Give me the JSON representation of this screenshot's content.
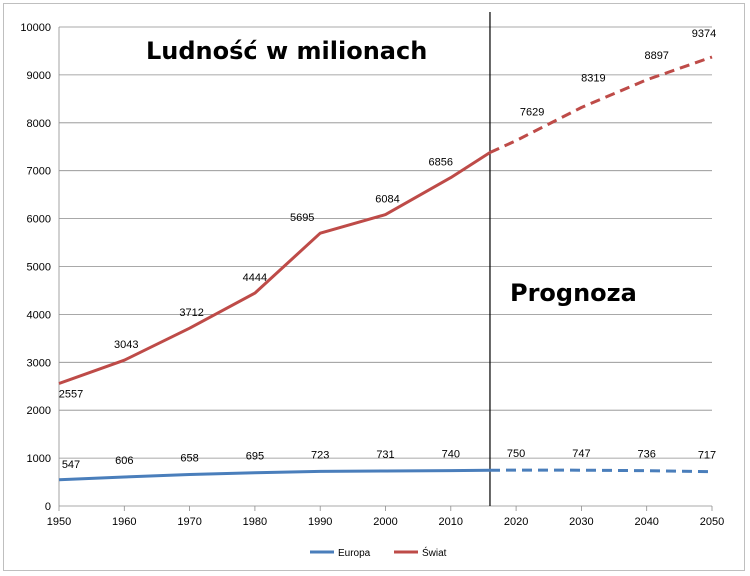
{
  "chart_data": {
    "type": "line",
    "title": "Ludność w milionach",
    "annotation": "Prognoza",
    "x": [
      1950,
      1960,
      1970,
      1980,
      1990,
      2000,
      2010,
      2020,
      2030,
      2040,
      2050
    ],
    "xticks": [
      1950,
      1960,
      1970,
      1980,
      1990,
      2000,
      2010,
      2020,
      2030,
      2040,
      2050
    ],
    "yticks": [
      0,
      1000,
      2000,
      3000,
      4000,
      5000,
      6000,
      7000,
      8000,
      9000,
      10000
    ],
    "xlim": [
      1950,
      2050
    ],
    "ylim": [
      0,
      10000
    ],
    "forecast_start": 2016,
    "grid": true,
    "legend_position": "bottom",
    "series": [
      {
        "name": "Europa",
        "color": "#4a7ebb",
        "points": [
          {
            "x": 1950,
            "y": 547,
            "label": "547"
          },
          {
            "x": 1960,
            "y": 606,
            "label": "606"
          },
          {
            "x": 1970,
            "y": 658,
            "label": "658"
          },
          {
            "x": 1980,
            "y": 695,
            "label": "695"
          },
          {
            "x": 1990,
            "y": 723,
            "label": "723"
          },
          {
            "x": 2000,
            "y": 731,
            "label": "731"
          },
          {
            "x": 2010,
            "y": 740,
            "label": "740"
          },
          {
            "x": 2016,
            "y": 746,
            "label": ""
          },
          {
            "x": 2020,
            "y": 750,
            "label": "750"
          },
          {
            "x": 2030,
            "y": 747,
            "label": "747"
          },
          {
            "x": 2040,
            "y": 736,
            "label": "736"
          },
          {
            "x": 2050,
            "y": 717,
            "label": "717"
          }
        ]
      },
      {
        "name": "Świat",
        "color": "#be4b48",
        "points": [
          {
            "x": 1950,
            "y": 2557,
            "label": "2557"
          },
          {
            "x": 1960,
            "y": 3043,
            "label": "3043"
          },
          {
            "x": 1970,
            "y": 3712,
            "label": "3712"
          },
          {
            "x": 1980,
            "y": 4444,
            "label": "4444"
          },
          {
            "x": 1990,
            "y": 5695,
            "label": "5695"
          },
          {
            "x": 2000,
            "y": 6084,
            "label": "6084"
          },
          {
            "x": 2010,
            "y": 6856,
            "label": "6856"
          },
          {
            "x": 2016,
            "y": 7380,
            "label": ""
          },
          {
            "x": 2020,
            "y": 7629,
            "label": "7629"
          },
          {
            "x": 2030,
            "y": 8319,
            "label": "8319"
          },
          {
            "x": 2040,
            "y": 8897,
            "label": "8897"
          },
          {
            "x": 2050,
            "y": 9374,
            "label": "9374"
          }
        ]
      }
    ]
  }
}
